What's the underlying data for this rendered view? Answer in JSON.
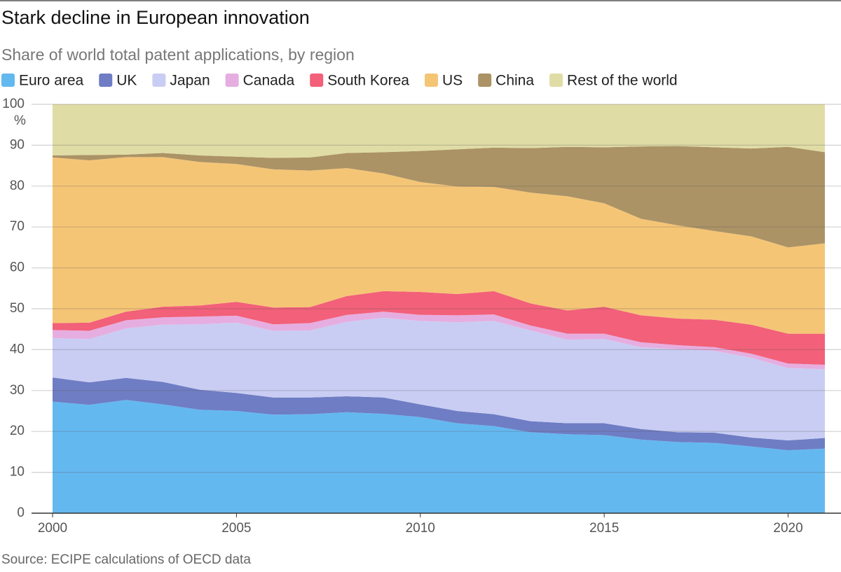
{
  "chart_data": {
    "type": "stacked_area",
    "title": "Stark decline in European innovation",
    "subtitle": "Share of world total patent applications, by region",
    "source": "Source: ECIPE calculations of OECD data",
    "y_unit": "%",
    "x": [
      2000,
      2001,
      2002,
      2003,
      2004,
      2005,
      2006,
      2007,
      2008,
      2009,
      2010,
      2011,
      2012,
      2013,
      2014,
      2015,
      2016,
      2017,
      2018,
      2019,
      2020,
      2021
    ],
    "series": [
      {
        "name": "Euro area",
        "color": "#64b8f0",
        "values": [
          27.3,
          26.5,
          27.7,
          26.6,
          25.3,
          25.0,
          24.1,
          24.2,
          24.7,
          24.3,
          23.5,
          22.0,
          21.3,
          19.8,
          19.3,
          19.1,
          18.0,
          17.4,
          17.2,
          16.3,
          15.4,
          15.8
        ]
      },
      {
        "name": "UK",
        "color": "#6f7dc4",
        "values": [
          5.9,
          5.5,
          5.4,
          5.5,
          4.9,
          4.4,
          4.2,
          4.1,
          3.9,
          4.0,
          3.1,
          3.0,
          2.9,
          2.7,
          2.7,
          2.9,
          2.6,
          2.4,
          2.5,
          2.2,
          2.4,
          2.6
        ]
      },
      {
        "name": "Japan",
        "color": "#c9cdf3",
        "values": [
          9.6,
          10.6,
          12.1,
          14.0,
          16.0,
          17.2,
          16.3,
          16.4,
          18.2,
          19.5,
          20.4,
          21.7,
          22.8,
          22.2,
          20.4,
          20.6,
          20.0,
          20.3,
          20.0,
          19.5,
          17.7,
          16.8
        ]
      },
      {
        "name": "Canada",
        "color": "#e6aee0",
        "values": [
          2.0,
          2.0,
          2.0,
          1.8,
          1.9,
          1.7,
          1.6,
          1.8,
          1.7,
          1.5,
          1.5,
          1.7,
          1.6,
          1.2,
          1.5,
          1.3,
          1.2,
          1.0,
          0.9,
          1.0,
          1.1,
          1.1
        ]
      },
      {
        "name": "South Korea",
        "color": "#f26079",
        "values": [
          1.7,
          2.0,
          2.1,
          2.6,
          2.7,
          3.4,
          4.1,
          3.9,
          4.6,
          5.0,
          5.6,
          5.2,
          5.7,
          5.4,
          5.7,
          6.6,
          6.6,
          6.5,
          6.7,
          7.1,
          7.3,
          7.6
        ]
      },
      {
        "name": "US",
        "color": "#f5c576",
        "values": [
          40.5,
          39.7,
          37.8,
          36.6,
          35.1,
          33.7,
          33.8,
          33.4,
          31.3,
          28.8,
          26.9,
          26.3,
          25.5,
          27.1,
          27.9,
          25.3,
          23.6,
          22.8,
          21.7,
          21.6,
          21.1,
          22.1
        ]
      },
      {
        "name": "China",
        "color": "#ab9366",
        "values": [
          0.5,
          1.3,
          0.6,
          1.0,
          1.6,
          1.8,
          2.8,
          3.2,
          3.7,
          5.2,
          7.6,
          9.1,
          9.6,
          10.9,
          12.1,
          13.7,
          17.7,
          19.4,
          20.5,
          21.5,
          24.6,
          22.3
        ]
      },
      {
        "name": "Rest of the world",
        "color": "#e0dca5",
        "values": [
          12.5,
          12.4,
          12.3,
          11.9,
          12.5,
          12.8,
          13.1,
          13.0,
          11.9,
          11.7,
          11.4,
          11.0,
          10.6,
          10.7,
          10.4,
          10.5,
          10.3,
          10.2,
          10.5,
          10.8,
          10.4,
          11.7
        ]
      }
    ],
    "xlim": [
      2000,
      2021
    ],
    "xticks": [
      2000,
      2005,
      2010,
      2015,
      2020
    ],
    "ylim": [
      0,
      100
    ],
    "yticks": [
      0,
      10,
      20,
      30,
      40,
      50,
      60,
      70,
      80,
      90,
      100
    ],
    "grid": true
  }
}
